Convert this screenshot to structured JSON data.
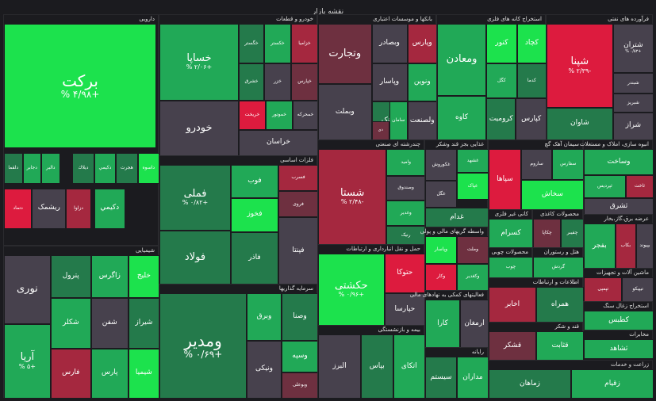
{
  "map_title": "نقشه بازار",
  "sectors": [
    {
      "label": "دارویی",
      "tiles": [
        {
          "name": "برکت",
          "change": "+۴/۹۸ %",
          "color": "g3"
        },
        {
          "name": "دلقما",
          "change": "",
          "color": "g1"
        },
        {
          "name": "دجابر",
          "change": "",
          "color": "g2"
        },
        {
          "name": "دالبر",
          "change": "",
          "color": "g2"
        },
        {
          "name": "داسوه",
          "change": "",
          "color": "g3"
        },
        {
          "name": "دکيمي",
          "change": "",
          "color": "g2"
        },
        {
          "name": "ديلاك",
          "change": "",
          "color": "g1"
        },
        {
          "name": "دتماد",
          "change": "",
          "color": "r3"
        },
        {
          "name": "ریشمک",
          "change": "",
          "color": "n0"
        },
        {
          "name": "دزاوا",
          "change": "",
          "color": "r2"
        },
        {
          "name": "هجرت",
          "change": "",
          "color": "g1"
        },
        {
          "name": "دكيمي",
          "change": "",
          "color": "g2"
        }
      ]
    },
    {
      "label": "خودرو و قطعات",
      "tiles": [
        {
          "name": "خساپا",
          "change": "+۲/۰۶ %",
          "color": "g2"
        },
        {
          "name": "خودرو",
          "change": "",
          "color": "n0"
        },
        {
          "name": "خکستر",
          "change": "",
          "color": "g2"
        },
        {
          "name": "خزامیا",
          "change": "",
          "color": "r2"
        },
        {
          "name": "خگستر",
          "change": "",
          "color": "g1"
        },
        {
          "name": "خزر",
          "change": "",
          "color": "n0"
        },
        {
          "name": "خریخت",
          "change": "",
          "color": "r3"
        },
        {
          "name": "خپارس",
          "change": "",
          "color": "r1"
        },
        {
          "name": "خموتور",
          "change": "",
          "color": "g2"
        },
        {
          "name": "خمحرکه",
          "change": "",
          "color": "n0"
        },
        {
          "name": "خشرق",
          "change": "",
          "color": "g1"
        },
        {
          "name": "خراسان",
          "change": "",
          "color": "n0"
        }
      ]
    },
    {
      "label": "بانکها و موسسات اعتباری",
      "tiles": [
        {
          "name": "وتجارت",
          "change": "",
          "color": "r1"
        },
        {
          "name": "وبملت",
          "change": "",
          "color": "n0"
        },
        {
          "name": "وبصادر",
          "change": "",
          "color": "n0"
        },
        {
          "name": "وپاسار",
          "change": "",
          "color": "n0"
        },
        {
          "name": "ونوین",
          "change": "",
          "color": "g2"
        },
        {
          "name": "وپارس",
          "change": "",
          "color": "r2"
        },
        {
          "name": "وبانک",
          "change": "",
          "color": "g1"
        },
        {
          "name": "ولصنعت",
          "change": "",
          "color": "n0"
        },
        {
          "name": "سامان",
          "change": "",
          "color": "g2"
        },
        {
          "name": "دی",
          "change": "",
          "color": "r1"
        }
      ]
    },
    {
      "label": "استخراج کانه های فلزی",
      "tiles": [
        {
          "name": "ومعادن",
          "change": "",
          "color": "g2"
        },
        {
          "name": "کگل",
          "change": "",
          "color": "g2"
        },
        {
          "name": "کچاد",
          "change": "",
          "color": "g3"
        },
        {
          "name": "کرومیت",
          "change": "",
          "color": "g1"
        },
        {
          "name": "کاوه",
          "change": "",
          "color": "g2"
        },
        {
          "name": "کنور",
          "change": "",
          "color": "g3"
        },
        {
          "name": "کدما",
          "change": "",
          "color": "g1"
        },
        {
          "name": "کپارس",
          "change": "",
          "color": "n0"
        }
      ]
    },
    {
      "label": "فرآورده های نفتی",
      "tiles": [
        {
          "name": "شپنا",
          "change": "-۲/۳۹ %",
          "color": "r3"
        },
        {
          "name": "شتران",
          "change": "+۰/۵۳ %",
          "color": "n0"
        },
        {
          "name": "شبندر",
          "change": "",
          "color": "n0"
        },
        {
          "name": "شبریز",
          "change": "",
          "color": "n0"
        },
        {
          "name": "شراز",
          "change": "",
          "color": "n0"
        },
        {
          "name": "شاوان",
          "change": "",
          "color": "g1"
        }
      ]
    },
    {
      "label": "فلزات اساسی",
      "tiles": [
        {
          "name": "فملی",
          "change": "+۰/۸۲ %",
          "color": "g1"
        },
        {
          "name": "فولاد",
          "change": "",
          "color": "g1"
        },
        {
          "name": "فوب",
          "change": "",
          "color": "g2"
        },
        {
          "name": "فخوز",
          "change": "",
          "color": "g3"
        },
        {
          "name": "فاذر",
          "change": "",
          "color": "g1"
        },
        {
          "name": "فسرب",
          "change": "",
          "color": "r2"
        },
        {
          "name": "فروی",
          "change": "",
          "color": "r1"
        },
        {
          "name": "فپنتا",
          "change": "",
          "color": "n0"
        }
      ]
    },
    {
      "label": "شیمیایی",
      "tiles": [
        {
          "name": "آریا",
          "change": "+۵ %",
          "color": "g2"
        },
        {
          "name": "نوری",
          "change": "",
          "color": "n0"
        },
        {
          "name": "پترول",
          "change": "",
          "color": "g1"
        },
        {
          "name": "زاگرس",
          "change": "",
          "color": "g2"
        },
        {
          "name": "شکلر",
          "change": "",
          "color": "g2"
        },
        {
          "name": "فارس",
          "change": "",
          "color": "r2"
        },
        {
          "name": "خلیج",
          "change": "",
          "color": "g3"
        },
        {
          "name": "شفن",
          "change": "",
          "color": "n0"
        },
        {
          "name": "شیراز",
          "change": "",
          "color": "g1"
        },
        {
          "name": "پارس",
          "change": "",
          "color": "g2"
        },
        {
          "name": "شیمیا",
          "change": "",
          "color": "g3"
        }
      ]
    },
    {
      "label": "چندرشته ای صنعتی",
      "tiles": [
        {
          "name": "شستا",
          "change": "-۲/۴۸ %",
          "color": "r2"
        },
        {
          "name": "وامید",
          "change": "",
          "color": "g2"
        },
        {
          "name": "وصندوق",
          "change": "",
          "color": "n0"
        },
        {
          "name": "وغدیر",
          "change": "",
          "color": "g2"
        },
        {
          "name": "رنیک",
          "change": "",
          "color": "g1"
        }
      ]
    },
    {
      "label": "غذایی بجز قند وشکر",
      "tiles": [
        {
          "name": "غکوروش",
          "change": "",
          "color": "n0"
        },
        {
          "name": "غشهد",
          "change": "",
          "color": "g2"
        },
        {
          "name": "غپاک",
          "change": "",
          "color": "g3"
        },
        {
          "name": "غگل",
          "change": "",
          "color": "n0"
        },
        {
          "name": "غدام",
          "change": "",
          "color": "g1"
        }
      ]
    },
    {
      "label": "سیمان آهک گچ",
      "tiles": [
        {
          "name": "سپاها",
          "change": "",
          "color": "r3"
        },
        {
          "name": "ساروم",
          "change": "",
          "color": "n0"
        },
        {
          "name": "سفارس",
          "change": "",
          "color": "g2"
        },
        {
          "name": "سخاش",
          "change": "",
          "color": "g3"
        }
      ]
    },
    {
      "label": "انبوه سازی، املاک و مستغلات",
      "tiles": [
        {
          "name": "وساخت",
          "change": "",
          "color": "g2"
        },
        {
          "name": "ثپردیس",
          "change": "",
          "color": "g2"
        },
        {
          "name": "ثاخت",
          "change": "",
          "color": "r2"
        },
        {
          "name": "ثشرق",
          "change": "",
          "color": "n0"
        }
      ]
    },
    {
      "label": "سرمایه گذاریها",
      "tiles": [
        {
          "name": "ومدیر",
          "change": "+۰/۶۹ %",
          "color": "g1"
        },
        {
          "name": "وبرق",
          "change": "",
          "color": "g2"
        },
        {
          "name": "وصنا",
          "change": "",
          "color": "g1"
        },
        {
          "name": "ونیکی",
          "change": "",
          "color": "n0"
        },
        {
          "name": "وسپه",
          "change": "",
          "color": "g2"
        },
        {
          "name": "وبوعلی",
          "change": "",
          "color": "r1"
        }
      ]
    },
    {
      "label": "حمل و نقل انبارداری و ارتباطات",
      "tiles": [
        {
          "name": "حکشتی",
          "change": "+۰/۹۶ %",
          "color": "g3"
        },
        {
          "name": "حتوکا",
          "change": "",
          "color": "r3"
        },
        {
          "name": "حپارسا",
          "change": "",
          "color": "n0"
        }
      ]
    },
    {
      "label": "واسطه گریهای مالی و پولی",
      "tiles": [
        {
          "name": "وپاسار",
          "change": "",
          "color": "g3"
        },
        {
          "name": "وملت",
          "change": "",
          "color": "r1"
        },
        {
          "name": "وکار",
          "change": "",
          "color": "r3"
        },
        {
          "name": "وکغدیر",
          "change": "",
          "color": "g2"
        }
      ]
    },
    {
      "label": "کانی غیر فلزی",
      "tiles": [
        {
          "name": "کسرام",
          "change": "",
          "color": "g2"
        },
        {
          "name": "کفپارس",
          "change": "",
          "color": "n0"
        }
      ]
    },
    {
      "label": "محصولات کاغذی",
      "tiles": [
        {
          "name": "چکاپا",
          "change": "",
          "color": "r1"
        },
        {
          "name": "چفیبر",
          "change": "",
          "color": "g1"
        }
      ]
    },
    {
      "label": "عرضه برق،گاز،بخار",
      "tiles": [
        {
          "name": "بفجر",
          "change": "",
          "color": "g2"
        },
        {
          "name": "بکاب",
          "change": "",
          "color": "r2"
        },
        {
          "name": "بپیوند",
          "change": "",
          "color": "n0"
        }
      ]
    },
    {
      "label": "بیمه و بازنشستگی",
      "tiles": [
        {
          "name": "البرز",
          "change": "",
          "color": "n0"
        },
        {
          "name": "بپاس",
          "change": "",
          "color": "g1"
        },
        {
          "name": "اتکای",
          "change": "",
          "color": "g2"
        }
      ]
    },
    {
      "label": "فعالیتهای کمکی به نهادهای مالی",
      "tiles": [
        {
          "name": "کارا",
          "change": "",
          "color": "g2"
        },
        {
          "name": "ارمغان",
          "change": "",
          "color": "n0"
        }
      ]
    },
    {
      "label": "محصولات چوبی",
      "tiles": [
        {
          "name": "چوب",
          "change": "",
          "color": "g2"
        }
      ]
    },
    {
      "label": "هتل و رستوران",
      "tiles": [
        {
          "name": "گردش",
          "change": "",
          "color": "g2"
        }
      ]
    },
    {
      "label": "رایانه",
      "tiles": [
        {
          "name": "سیستم",
          "change": "",
          "color": "g1"
        },
        {
          "name": "مداران",
          "change": "",
          "color": "g2"
        }
      ]
    },
    {
      "label": "ماشین آلات و تجهیزات",
      "tiles": [
        {
          "name": "تپمپی",
          "change": "",
          "color": "r2"
        },
        {
          "name": "تیپیکو",
          "change": "",
          "color": "n0"
        }
      ]
    },
    {
      "label": "اطلاعات و ارتباطات",
      "tiles": [
        {
          "name": "اخابر",
          "change": "",
          "color": "r2"
        },
        {
          "name": "همراه",
          "change": "",
          "color": "g1"
        }
      ]
    },
    {
      "label": "استخراج زغال سنگ",
      "tiles": [
        {
          "name": "کطبس",
          "change": "",
          "color": "g2"
        }
      ]
    },
    {
      "label": "مخابرات",
      "tiles": [
        {
          "name": "ثشاهد",
          "change": "",
          "color": "g2"
        }
      ]
    },
    {
      "label": "قند و شکر",
      "tiles": [
        {
          "name": "قشکر",
          "change": "",
          "color": "r1"
        },
        {
          "name": "قثابت",
          "change": "",
          "color": "g2"
        }
      ]
    },
    {
      "label": "زراعت و خدمات",
      "tiles": [
        {
          "name": "زماهان",
          "change": "",
          "color": "g1"
        },
        {
          "name": "زقیام",
          "change": "",
          "color": "g2"
        }
      ]
    }
  ]
}
